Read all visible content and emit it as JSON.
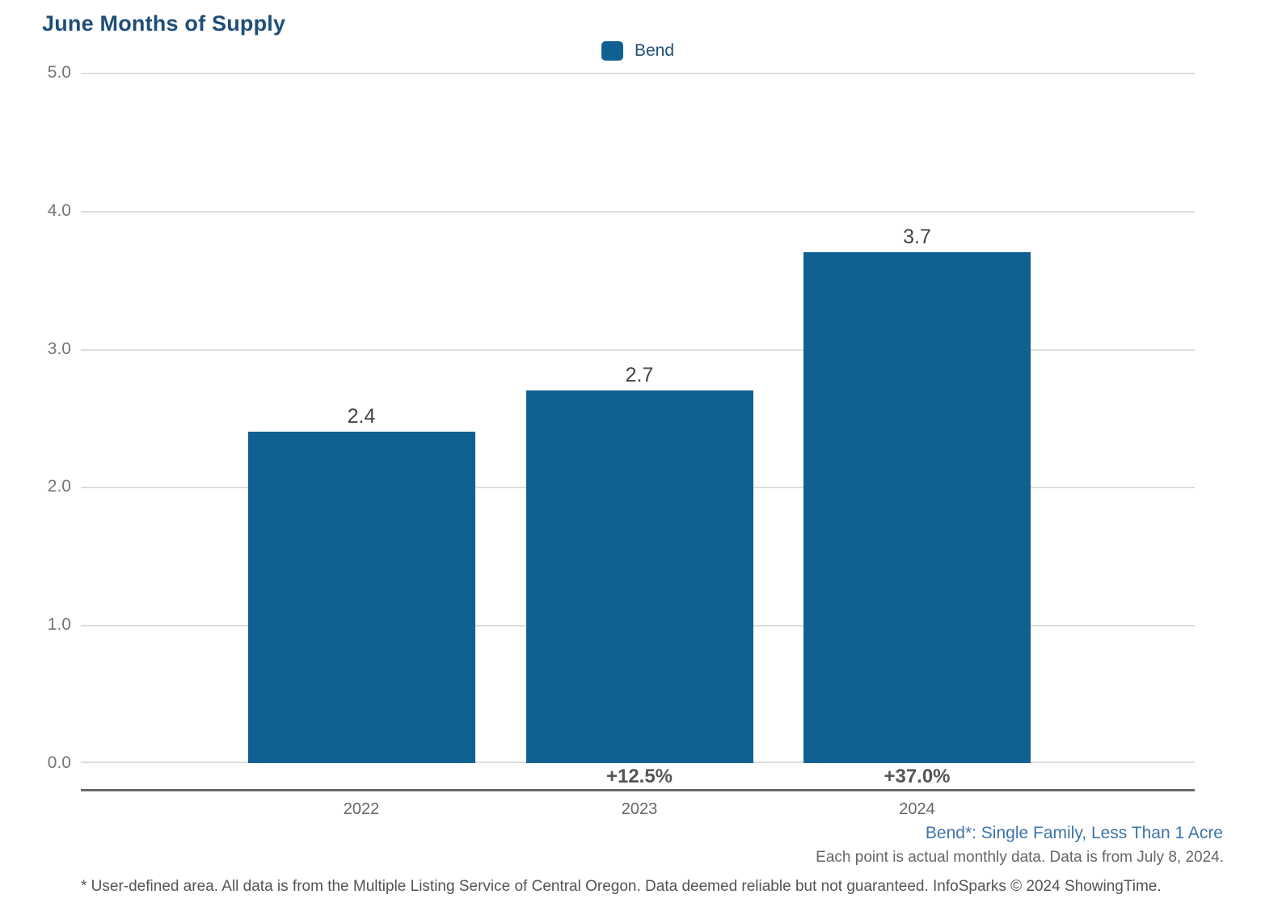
{
  "chart_data": {
    "type": "bar",
    "title": "June Months of Supply",
    "categories": [
      "2022",
      "2023",
      "2024"
    ],
    "series": [
      {
        "name": "Bend",
        "values": [
          2.4,
          2.7,
          3.7
        ]
      }
    ],
    "value_labels": [
      "2.4",
      "2.7",
      "3.7"
    ],
    "pct_change_labels": [
      "",
      "+12.5%",
      "+37.0%"
    ],
    "y_ticks": [
      "5.0",
      "4.0",
      "3.0",
      "2.0",
      "1.0",
      "0.0"
    ],
    "ylim": [
      0,
      5
    ],
    "grid": "horizontal",
    "legend_position": "top-center",
    "bar_color": "#106192"
  },
  "legend": {
    "items": [
      {
        "label": "Bend",
        "color": "#106192"
      }
    ]
  },
  "footnotes": {
    "area_definition": "Bend*: Single Family, Less Than 1 Acre",
    "data_note": "Each point is actual monthly data. Data is from July 8, 2024.",
    "disclaimer": "* User-defined area. All data is from the Multiple Listing Service of Central Oregon. Data deemed reliable but not guaranteed. InfoSparks © 2024 ShowingTime."
  },
  "colors": {
    "bar": "#106192",
    "title_text": "#1f4e79",
    "gridline": "#dddddd",
    "axis_line": "#696969",
    "tick_text": "#757575",
    "value_text": "#444444",
    "pct_text": "#555555",
    "footnote_blue": "#3f74a8"
  }
}
